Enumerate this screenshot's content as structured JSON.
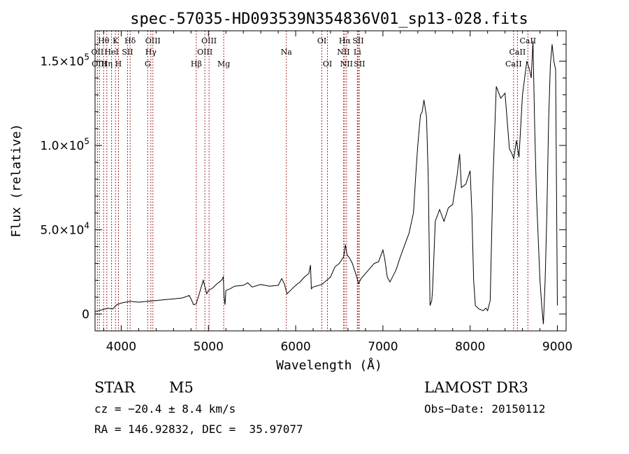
{
  "chart_data": {
    "type": "line",
    "title": "spec-57035-HD093539N354836V01_sp13-028.fits",
    "xlabel": "Wavelength (Å)",
    "ylabel": "Flux (relative)",
    "xlim": [
      3700,
      9100
    ],
    "ylim": [
      -10000,
      168000
    ],
    "xticks": [
      4000,
      5000,
      6000,
      7000,
      8000,
      9000
    ],
    "xtick_labels": [
      "4000",
      "5000",
      "6000",
      "7000",
      "8000",
      "9000"
    ],
    "yticks": [
      0,
      50000,
      100000,
      150000
    ],
    "ytick_labels": [
      {
        "base": "0",
        "exp": ""
      },
      {
        "base": "5.0×10",
        "exp": "4"
      },
      {
        "base": "1.0×10",
        "exp": "5"
      },
      {
        "base": "1.5×10",
        "exp": "5"
      }
    ],
    "series": [
      {
        "name": "flux",
        "points": [
          [
            3700,
            1500
          ],
          [
            3780,
            2500
          ],
          [
            3850,
            3500
          ],
          [
            3900,
            3000
          ],
          [
            3950,
            5500
          ],
          [
            4000,
            6500
          ],
          [
            4100,
            7500
          ],
          [
            4200,
            7000
          ],
          [
            4300,
            7500
          ],
          [
            4400,
            8000
          ],
          [
            4500,
            8500
          ],
          [
            4600,
            9000
          ],
          [
            4700,
            9500
          ],
          [
            4780,
            11000
          ],
          [
            4800,
            9000
          ],
          [
            4830,
            5500
          ],
          [
            4860,
            6000
          ],
          [
            4900,
            13000
          ],
          [
            4940,
            20000
          ],
          [
            4960,
            16000
          ],
          [
            4980,
            12000
          ],
          [
            5000,
            14000
          ],
          [
            5050,
            15500
          ],
          [
            5100,
            18000
          ],
          [
            5150,
            20000
          ],
          [
            5170,
            22000
          ],
          [
            5180,
            10000
          ],
          [
            5190,
            5500
          ],
          [
            5200,
            14000
          ],
          [
            5250,
            15000
          ],
          [
            5300,
            16500
          ],
          [
            5400,
            17000
          ],
          [
            5450,
            18500
          ],
          [
            5500,
            16000
          ],
          [
            5600,
            17500
          ],
          [
            5700,
            16500
          ],
          [
            5800,
            17000
          ],
          [
            5840,
            21000
          ],
          [
            5870,
            18000
          ],
          [
            5900,
            12000
          ],
          [
            5940,
            14000
          ],
          [
            6000,
            17000
          ],
          [
            6050,
            19000
          ],
          [
            6100,
            22000
          ],
          [
            6150,
            24000
          ],
          [
            6170,
            29000
          ],
          [
            6180,
            15000
          ],
          [
            6200,
            16000
          ],
          [
            6300,
            17500
          ],
          [
            6400,
            22000
          ],
          [
            6450,
            28000
          ],
          [
            6500,
            30000
          ],
          [
            6550,
            34000
          ],
          [
            6570,
            41000
          ],
          [
            6590,
            35000
          ],
          [
            6620,
            33000
          ],
          [
            6650,
            30000
          ],
          [
            6700,
            22000
          ],
          [
            6720,
            18000
          ],
          [
            6750,
            21000
          ],
          [
            6800,
            24000
          ],
          [
            6900,
            30000
          ],
          [
            6950,
            31000
          ],
          [
            7000,
            38000
          ],
          [
            7020,
            33000
          ],
          [
            7050,
            22000
          ],
          [
            7080,
            19000
          ],
          [
            7100,
            21000
          ],
          [
            7150,
            26000
          ],
          [
            7200,
            34000
          ],
          [
            7250,
            41000
          ],
          [
            7300,
            48000
          ],
          [
            7350,
            60000
          ],
          [
            7380,
            85000
          ],
          [
            7400,
            100000
          ],
          [
            7430,
            118000
          ],
          [
            7450,
            120000
          ],
          [
            7470,
            127000
          ],
          [
            7500,
            117000
          ],
          [
            7520,
            80000
          ],
          [
            7540,
            5000
          ],
          [
            7560,
            8000
          ],
          [
            7570,
            15000
          ],
          [
            7600,
            55000
          ],
          [
            7650,
            62000
          ],
          [
            7700,
            55000
          ],
          [
            7750,
            63000
          ],
          [
            7800,
            65000
          ],
          [
            7850,
            82000
          ],
          [
            7880,
            95000
          ],
          [
            7900,
            75000
          ],
          [
            7950,
            77000
          ],
          [
            8000,
            85000
          ],
          [
            8020,
            60000
          ],
          [
            8040,
            20000
          ],
          [
            8060,
            5000
          ],
          [
            8100,
            3000
          ],
          [
            8150,
            2000
          ],
          [
            8180,
            3500
          ],
          [
            8200,
            2000
          ],
          [
            8230,
            8000
          ],
          [
            8260,
            78000
          ],
          [
            8300,
            135000
          ],
          [
            8350,
            128000
          ],
          [
            8400,
            131000
          ],
          [
            8450,
            98000
          ],
          [
            8480,
            95000
          ],
          [
            8500,
            92000
          ],
          [
            8530,
            103000
          ],
          [
            8560,
            93000
          ],
          [
            8600,
            130000
          ],
          [
            8650,
            150000
          ],
          [
            8680,
            145000
          ],
          [
            8700,
            140000
          ],
          [
            8720,
            162000
          ],
          [
            8740,
            110000
          ],
          [
            8760,
            70000
          ],
          [
            8780,
            45000
          ],
          [
            8800,
            20000
          ],
          [
            8820,
            5000
          ],
          [
            8840,
            -6000
          ],
          [
            8860,
            20000
          ],
          [
            8880,
            60000
          ],
          [
            8900,
            115000
          ],
          [
            8920,
            148000
          ],
          [
            8940,
            160000
          ],
          [
            8960,
            150000
          ],
          [
            8980,
            145000
          ],
          [
            9000,
            5000
          ]
        ]
      }
    ],
    "lines": [
      {
        "label": "Hθ",
        "x": 3798,
        "row": 0
      },
      {
        "label": "OII",
        "x": 3727,
        "row": 1
      },
      {
        "label": "OIII",
        "x": 3750,
        "row": 2
      },
      {
        "label": "K",
        "x": 3934,
        "row": 0
      },
      {
        "label": "HeI",
        "x": 3889,
        "row": 1
      },
      {
        "label": "Hη",
        "x": 3835,
        "row": 2
      },
      {
        "label": "Hδ",
        "x": 4102,
        "row": 0
      },
      {
        "label": "SII",
        "x": 4072,
        "row": 1
      },
      {
        "label": "H",
        "x": 3968,
        "row": 2
      },
      {
        "label": "OIII",
        "x": 4363,
        "row": 0
      },
      {
        "label": "Hγ",
        "x": 4340,
        "row": 1
      },
      {
        "label": "G",
        "x": 4304,
        "row": 2
      },
      {
        "label": "OIII",
        "x": 5007,
        "row": 0
      },
      {
        "label": "OIII",
        "x": 4959,
        "row": 1
      },
      {
        "label": "Hβ",
        "x": 4861,
        "row": 2
      },
      {
        "label": "Mg",
        "x": 5175,
        "row": 2
      },
      {
        "label": "Na",
        "x": 5893,
        "row": 1
      },
      {
        "label": "OI",
        "x": 6300,
        "row": 0
      },
      {
        "label": "OI",
        "x": 6364,
        "row": 2
      },
      {
        "label": "Hα",
        "x": 6563,
        "row": 0
      },
      {
        "label": "SII",
        "x": 6716,
        "row": 0
      },
      {
        "label": "NII",
        "x": 6548,
        "row": 1
      },
      {
        "label": "Li",
        "x": 6707,
        "row": 1
      },
      {
        "label": "NII",
        "x": 6583,
        "row": 2
      },
      {
        "label": "SII",
        "x": 6731,
        "row": 2
      },
      {
        "label": "CaII",
        "x": 8662,
        "row": 0
      },
      {
        "label": "CaII",
        "x": 8542,
        "row": 1
      },
      {
        "label": "CaII",
        "x": 8498,
        "row": 2
      }
    ]
  },
  "info": {
    "object_type": "STAR",
    "subclass": "M5",
    "survey": "LAMOST DR3",
    "cz": "cz = −20.4 ± 8.4 km/s",
    "obs_date": "Obs−Date: 20150112",
    "coords": "RA = 146.92832, DEC =  35.97077"
  },
  "colors": {
    "line": "#000000",
    "marker": "#a52a2a",
    "background": "#ffffff"
  }
}
